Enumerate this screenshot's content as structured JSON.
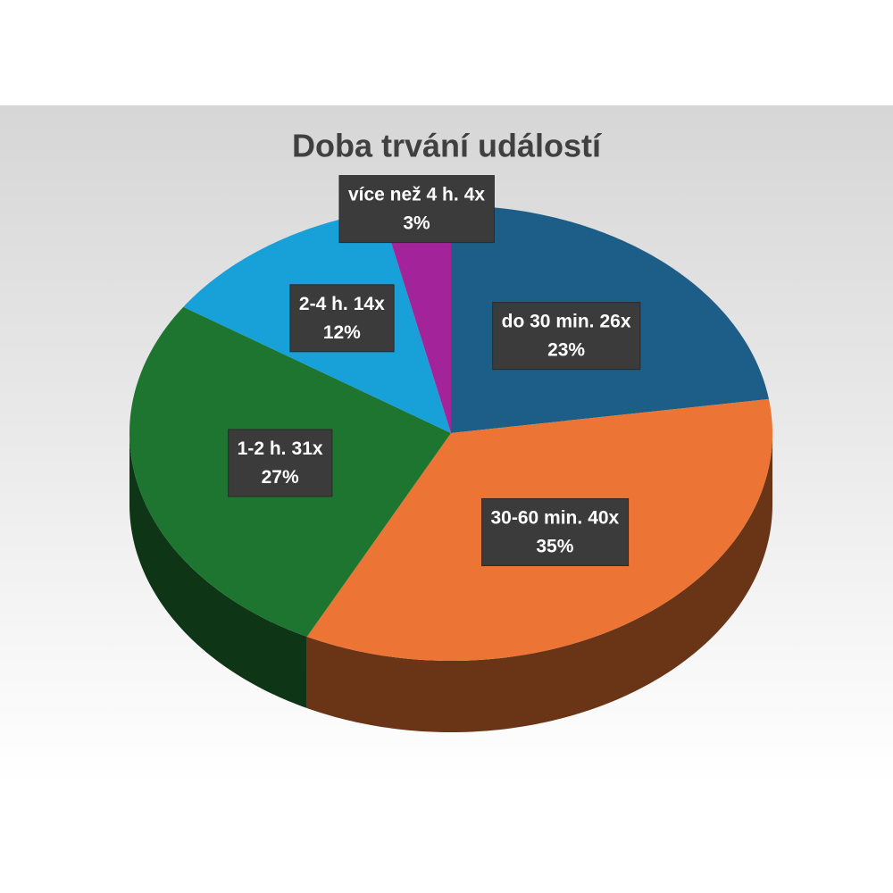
{
  "chart_data": {
    "type": "pie3d",
    "title": "Doba trvání událostí",
    "categories": [
      "do 30 min.",
      "30-60 min.",
      "1-2 h.",
      "2-4 h.",
      "více než 4 h."
    ],
    "values": [
      26,
      40,
      31,
      14,
      4
    ],
    "value_labels": [
      "26x",
      "40x",
      "31x",
      "14x",
      "4x"
    ],
    "percent_labels": [
      "23%",
      "35%",
      "27%",
      "12%",
      "3%"
    ],
    "colors": [
      "#1d5e88",
      "#ec7434",
      "#1e7530",
      "#18a0d8",
      "#a3249a"
    ]
  }
}
